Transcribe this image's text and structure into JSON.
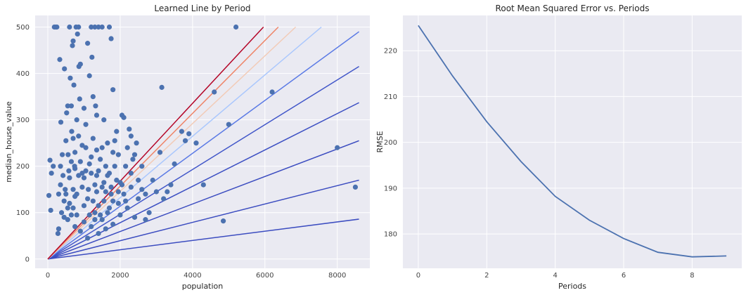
{
  "chart_data": [
    {
      "type": "scatter",
      "title": "Learned Line by Period",
      "xlabel": "population",
      "ylabel": "median_house_value",
      "xlim": [
        -350,
        8900
      ],
      "ylim": [
        -20,
        525
      ],
      "xticks": [
        0,
        2000,
        4000,
        6000,
        8000
      ],
      "yticks": [
        0,
        100,
        200,
        300,
        400,
        500
      ],
      "grid": true,
      "point_color": "#4c72b0",
      "points": [
        [
          30,
          137
        ],
        [
          60,
          213
        ],
        [
          80,
          105
        ],
        [
          100,
          185
        ],
        [
          150,
          200
        ],
        [
          180,
          500
        ],
        [
          220,
          500
        ],
        [
          250,
          500
        ],
        [
          280,
          55
        ],
        [
          300,
          140
        ],
        [
          300,
          65
        ],
        [
          330,
          430
        ],
        [
          350,
          200
        ],
        [
          360,
          295
        ],
        [
          380,
          100
        ],
        [
          400,
          225
        ],
        [
          420,
          180
        ],
        [
          450,
          90
        ],
        [
          460,
          410
        ],
        [
          480,
          150
        ],
        [
          500,
          255
        ],
        [
          520,
          315
        ],
        [
          550,
          330
        ],
        [
          560,
          225
        ],
        [
          580,
          190
        ],
        [
          600,
          500
        ],
        [
          620,
          390
        ],
        [
          650,
          330
        ],
        [
          660,
          275
        ],
        [
          680,
          460
        ],
        [
          700,
          470
        ],
        [
          700,
          260
        ],
        [
          720,
          375
        ],
        [
          740,
          200
        ],
        [
          750,
          135
        ],
        [
          780,
          500
        ],
        [
          800,
          300
        ],
        [
          820,
          485
        ],
        [
          850,
          500
        ],
        [
          860,
          415
        ],
        [
          880,
          345
        ],
        [
          900,
          420
        ],
        [
          950,
          245
        ],
        [
          1000,
          325
        ],
        [
          1050,
          190
        ],
        [
          1100,
          465
        ],
        [
          1120,
          150
        ],
        [
          1150,
          395
        ],
        [
          1200,
          500
        ],
        [
          1220,
          435
        ],
        [
          1250,
          350
        ],
        [
          1300,
          500
        ],
        [
          1320,
          330
        ],
        [
          1350,
          310
        ],
        [
          1400,
          500
        ],
        [
          1500,
          500
        ],
        [
          1550,
          300
        ],
        [
          1600,
          200
        ],
        [
          1700,
          500
        ],
        [
          1750,
          475
        ],
        [
          1800,
          365
        ],
        [
          1850,
          255
        ],
        [
          1900,
          275
        ],
        [
          1950,
          225
        ],
        [
          2000,
          165
        ],
        [
          2050,
          310
        ],
        [
          2100,
          305
        ],
        [
          2150,
          200
        ],
        [
          2250,
          280
        ],
        [
          2300,
          265
        ],
        [
          2400,
          225
        ],
        [
          2500,
          170
        ],
        [
          2600,
          150
        ],
        [
          2700,
          85
        ],
        [
          2800,
          100
        ],
        [
          3000,
          145
        ],
        [
          3100,
          230
        ],
        [
          3150,
          370
        ],
        [
          3300,
          145
        ],
        [
          3500,
          205
        ],
        [
          3700,
          275
        ],
        [
          3800,
          255
        ],
        [
          3900,
          270
        ],
        [
          4100,
          250
        ],
        [
          4300,
          160
        ],
        [
          4600,
          360
        ],
        [
          5000,
          290
        ],
        [
          5200,
          500
        ],
        [
          6200,
          360
        ],
        [
          8000,
          240
        ],
        [
          8500,
          155
        ],
        [
          4850,
          82
        ],
        [
          600,
          120
        ],
        [
          700,
          150
        ],
        [
          800,
          95
        ],
        [
          900,
          210
        ],
        [
          1000,
          175
        ],
        [
          1100,
          130
        ],
        [
          1200,
          220
        ],
        [
          1300,
          160
        ],
        [
          1400,
          115
        ],
        [
          1500,
          240
        ],
        [
          1600,
          145
        ],
        [
          1700,
          185
        ],
        [
          1800,
          125
        ],
        [
          1900,
          170
        ],
        [
          2000,
          95
        ],
        [
          2100,
          140
        ],
        [
          2200,
          110
        ],
        [
          2300,
          185
        ],
        [
          2400,
          90
        ],
        [
          2500,
          130
        ],
        [
          900,
          60
        ],
        [
          1000,
          80
        ],
        [
          1100,
          45
        ],
        [
          1200,
          70
        ],
        [
          1300,
          100
        ],
        [
          1400,
          55
        ],
        [
          1500,
          85
        ],
        [
          1600,
          65
        ],
        [
          1700,
          110
        ],
        [
          1800,
          75
        ],
        [
          600,
          175
        ],
        [
          750,
          230
        ],
        [
          850,
          265
        ],
        [
          950,
          155
        ],
        [
          1050,
          290
        ],
        [
          1150,
          205
        ],
        [
          1250,
          260
        ],
        [
          1350,
          180
        ],
        [
          1450,
          215
        ],
        [
          1550,
          165
        ],
        [
          1650,
          250
        ],
        [
          1750,
          140
        ],
        [
          1850,
          200
        ],
        [
          1950,
          120
        ],
        [
          2050,
          160
        ],
        [
          700,
          110
        ],
        [
          800,
          140
        ],
        [
          950,
          185
        ],
        [
          1150,
          95
        ],
        [
          1250,
          125
        ],
        [
          1350,
          145
        ],
        [
          1450,
          95
        ],
        [
          1550,
          125
        ],
        [
          1650,
          100
        ],
        [
          1750,
          155
        ],
        [
          2600,
          200
        ],
        [
          2700,
          140
        ],
        [
          2900,
          170
        ],
        [
          3200,
          130
        ],
        [
          3400,
          160
        ],
        [
          2200,
          240
        ],
        [
          2350,
          215
        ],
        [
          2450,
          250
        ],
        [
          1300,
          85
        ],
        [
          1400,
          190
        ],
        [
          500,
          140
        ],
        [
          550,
          110
        ],
        [
          650,
          95
        ],
        [
          750,
          70
        ],
        [
          850,
          180
        ],
        [
          1000,
          115
        ],
        [
          1050,
          240
        ],
        [
          1200,
          185
        ],
        [
          1350,
          235
        ],
        [
          1500,
          155
        ],
        [
          1650,
          180
        ],
        [
          1800,
          230
        ],
        [
          1950,
          145
        ],
        [
          2150,
          125
        ],
        [
          2300,
          155
        ],
        [
          350,
          160
        ],
        [
          450,
          125
        ],
        [
          550,
          85
        ],
        [
          650,
          210
        ],
        [
          750,
          195
        ]
      ],
      "lines": [
        {
          "period": 0,
          "end": [
            8600,
            86
          ],
          "color": "#3b4cc0"
        },
        {
          "period": 1,
          "end": [
            8600,
            170
          ],
          "color": "#3b4cc0"
        },
        {
          "period": 2,
          "end": [
            8600,
            255
          ],
          "color": "#3b4cc0"
        },
        {
          "period": 3,
          "end": [
            8600,
            337
          ],
          "color": "#3d50c3"
        },
        {
          "period": 4,
          "end": [
            8600,
            415
          ],
          "color": "#4257c9"
        },
        {
          "period": 5,
          "end": [
            8600,
            490
          ],
          "color": "#5b7ae5"
        },
        {
          "period": 6,
          "end": [
            7560,
            500
          ],
          "color": "#aac7fd"
        },
        {
          "period": 7,
          "end": [
            6850,
            500
          ],
          "color": "#f2cbb7"
        },
        {
          "period": 8,
          "end": [
            6370,
            500
          ],
          "color": "#ee8468"
        },
        {
          "period": 9,
          "end": [
            5960,
            500
          ],
          "color": "#b40426"
        }
      ]
    },
    {
      "type": "line",
      "title": "Root Mean Squared Error vs. Periods",
      "xlabel": "Periods",
      "ylabel": "RMSE",
      "xlim": [
        -0.45,
        9.45
      ],
      "ylim": [
        172.5,
        227.7
      ],
      "xticks": [
        0,
        2,
        4,
        6,
        8
      ],
      "yticks": [
        180,
        190,
        200,
        210,
        220
      ],
      "grid": true,
      "line_color": "#4c72b0",
      "x": [
        0,
        1,
        2,
        3,
        4,
        5,
        6,
        7,
        8,
        9
      ],
      "values": [
        225.5,
        214.5,
        204.5,
        195.8,
        188.2,
        183.0,
        179.0,
        176.0,
        175.0,
        175.2
      ]
    }
  ]
}
